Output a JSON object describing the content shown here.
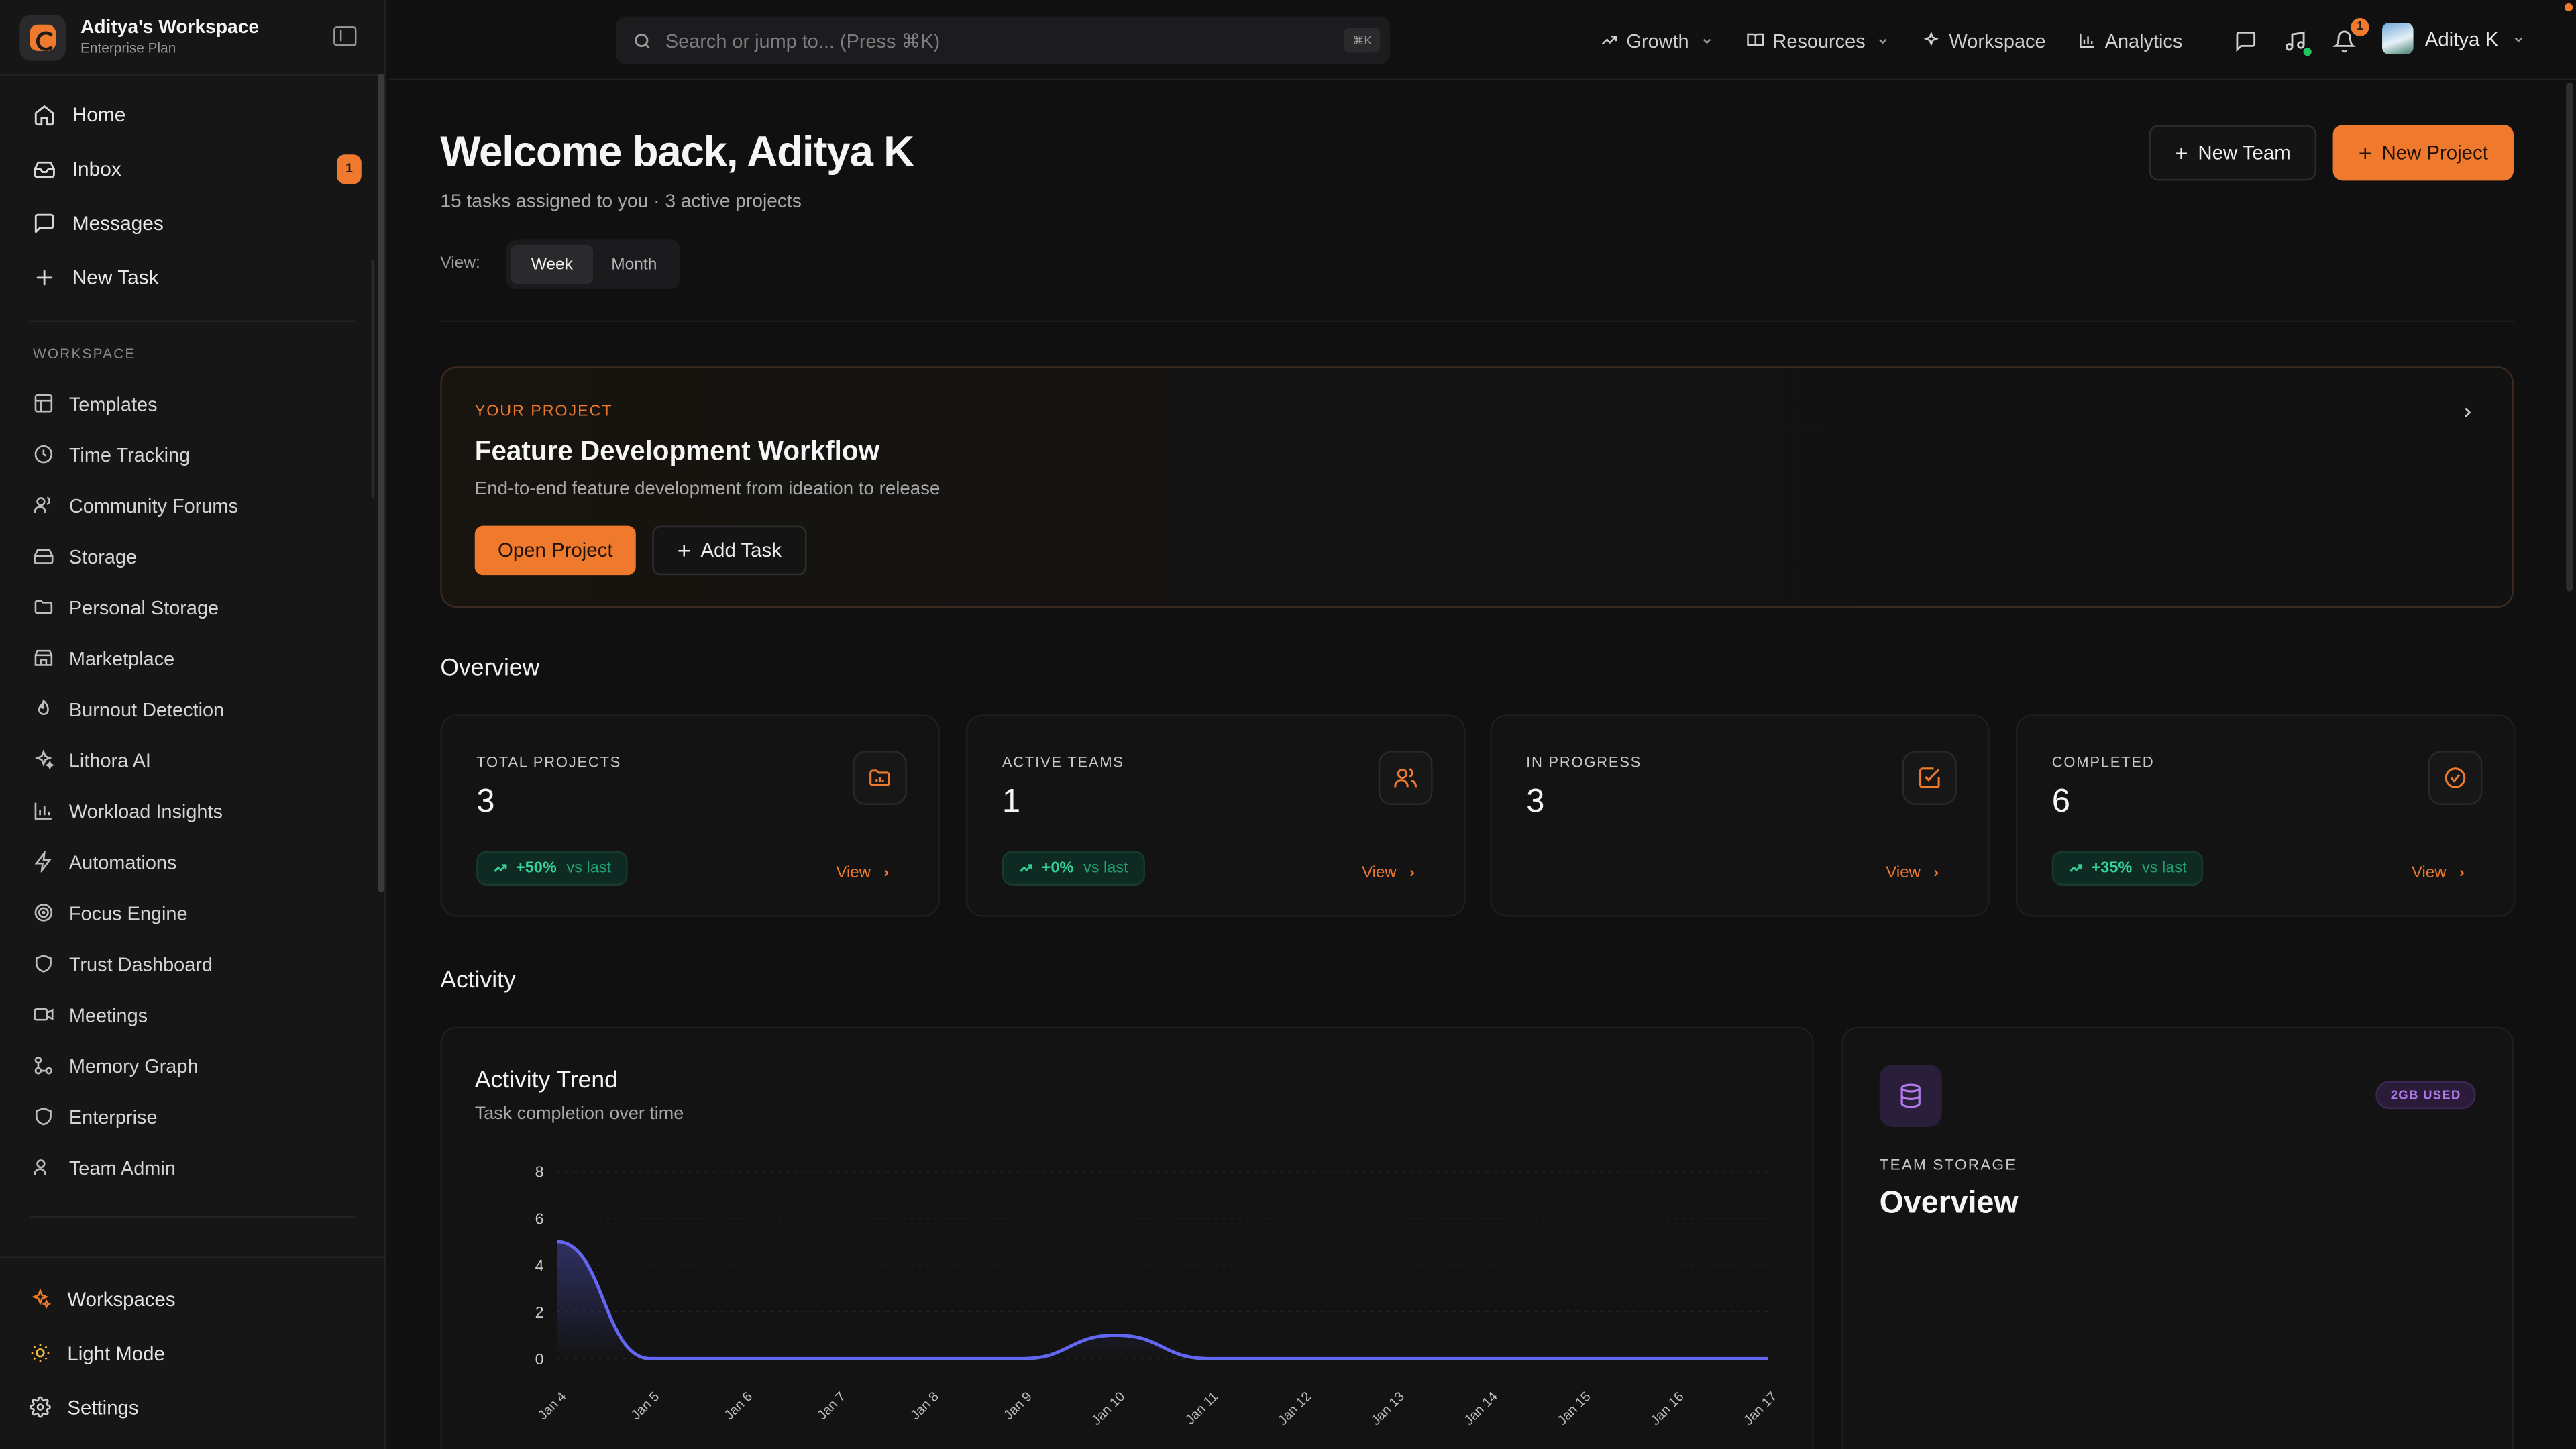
{
  "workspace": {
    "name": "Aditya's Workspace",
    "plan": "Enterprise Plan"
  },
  "nav": [
    {
      "label": "Home",
      "icon": "home-icon"
    },
    {
      "label": "Inbox",
      "icon": "inbox-icon",
      "badge": "1"
    },
    {
      "label": "Messages",
      "icon": "message-icon"
    },
    {
      "label": "New Task",
      "icon": "plus-icon"
    }
  ],
  "workspace_section": {
    "label": "WORKSPACE",
    "items": [
      {
        "label": "Templates",
        "icon": "template-icon"
      },
      {
        "label": "Time Tracking",
        "icon": "clock-icon"
      },
      {
        "label": "Community Forums",
        "icon": "users-icon"
      },
      {
        "label": "Storage",
        "icon": "storage-icon"
      },
      {
        "label": "Personal Storage",
        "icon": "folder-icon"
      },
      {
        "label": "Marketplace",
        "icon": "store-icon"
      },
      {
        "label": "Burnout Detection",
        "icon": "flame-icon"
      },
      {
        "label": "Lithora AI",
        "icon": "sparkles-icon"
      },
      {
        "label": "Workload Insights",
        "icon": "bar-chart-icon"
      },
      {
        "label": "Automations",
        "icon": "zap-icon"
      },
      {
        "label": "Focus Engine",
        "icon": "target-icon"
      },
      {
        "label": "Trust Dashboard",
        "icon": "shield-icon"
      },
      {
        "label": "Meetings",
        "icon": "video-icon"
      },
      {
        "label": "Memory Graph",
        "icon": "graph-icon"
      },
      {
        "label": "Enterprise",
        "icon": "shield-icon"
      },
      {
        "label": "Team Admin",
        "icon": "users-icon"
      }
    ]
  },
  "sidebar_bottom": [
    {
      "label": "Workspaces",
      "icon": "sparkles-icon"
    },
    {
      "label": "Light Mode",
      "icon": "sun-icon"
    },
    {
      "label": "Settings",
      "icon": "gear-icon"
    }
  ],
  "search": {
    "placeholder": "Search or jump to... (Press ⌘K)",
    "shortcut": "⌘K"
  },
  "topnav": [
    {
      "label": "Growth",
      "icon": "trend-icon",
      "dropdown": true
    },
    {
      "label": "Resources",
      "icon": "book-icon",
      "dropdown": true
    },
    {
      "label": "Workspace",
      "icon": "sparkles-icon",
      "dropdown": false
    },
    {
      "label": "Analytics",
      "icon": "bar-chart-icon",
      "dropdown": false
    }
  ],
  "notifications": {
    "count": "1"
  },
  "user": {
    "name": "Aditya K"
  },
  "header": {
    "title": "Welcome back, Aditya K",
    "subtitle": "15 tasks assigned to you · 3 active projects",
    "view_label": "View:",
    "view_options": [
      "Week",
      "Month"
    ],
    "view_selected": "Week",
    "new_team": "New Team",
    "new_project": "New Project"
  },
  "project": {
    "eyebrow": "YOUR PROJECT",
    "title": "Feature Development Workflow",
    "description": "End-to-end feature development from ideation to release",
    "open_label": "Open Project",
    "add_label": "Add Task"
  },
  "overview": {
    "heading": "Overview",
    "stats": [
      {
        "label": "TOTAL PROJECTS",
        "value": "3",
        "icon": "folder-chart-icon",
        "trend": "+50%",
        "trend_suffix": "vs last",
        "view": "View"
      },
      {
        "label": "ACTIVE TEAMS",
        "value": "1",
        "icon": "users-icon",
        "trend": "+0%",
        "trend_suffix": "vs last",
        "view": "View"
      },
      {
        "label": "IN PROGRESS",
        "value": "3",
        "icon": "square-check-icon",
        "trend": "",
        "trend_suffix": "",
        "view": "View"
      },
      {
        "label": "COMPLETED",
        "value": "6",
        "icon": "circle-check-icon",
        "trend": "+35%",
        "trend_suffix": "vs last",
        "view": "View"
      }
    ]
  },
  "activity": {
    "heading": "Activity"
  },
  "chart_data": {
    "type": "area",
    "title": "Activity Trend",
    "subtitle": "Task completion over time",
    "categories": [
      "Jan 4",
      "Jan 5",
      "Jan 6",
      "Jan 7",
      "Jan 8",
      "Jan 9",
      "Jan 10",
      "Jan 11",
      "Jan 12",
      "Jan 13",
      "Jan 14",
      "Jan 15",
      "Jan 16",
      "Jan 17"
    ],
    "series": [
      {
        "values": [
          5,
          0,
          0,
          0,
          0,
          0,
          1,
          0,
          0,
          0,
          0,
          0,
          0,
          0
        ]
      }
    ],
    "yticks": [
      0,
      2,
      4,
      6,
      8
    ],
    "ylim": [
      0,
      8
    ],
    "grid": true,
    "line_color": "#6366f1"
  },
  "storage": {
    "badge": "2GB USED",
    "eyebrow": "TEAM STORAGE",
    "title": "Overview"
  },
  "colors": {
    "accent": "#ef7a2e",
    "success": "#34d399",
    "purple": "#b07ae8"
  }
}
